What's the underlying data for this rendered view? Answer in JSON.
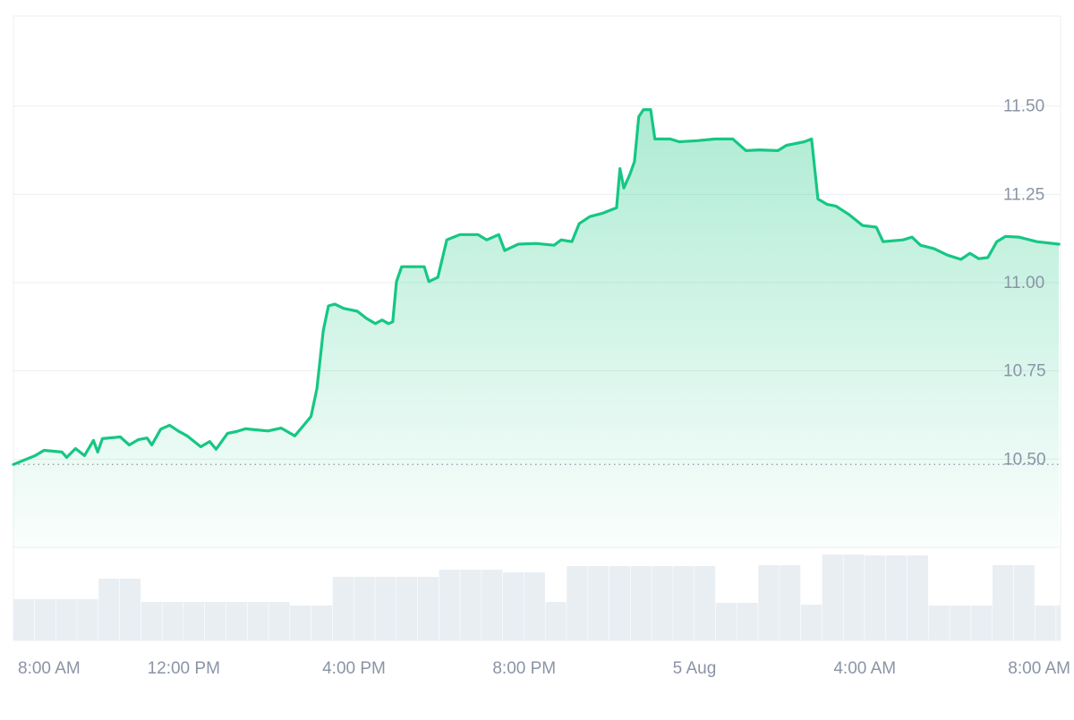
{
  "chart_data": {
    "type": "line",
    "color": "#16c784",
    "area": true,
    "grid": true,
    "x": [
      8.0,
      8.51,
      8.72,
      9.14,
      9.25,
      9.46,
      9.67,
      9.88,
      9.98,
      10.09,
      10.51,
      10.72,
      10.93,
      11.14,
      11.25,
      11.46,
      11.67,
      11.87,
      12.08,
      12.4,
      12.61,
      12.76,
      13.03,
      13.24,
      13.45,
      13.98,
      14.29,
      14.61,
      14.82,
      14.99,
      15.13,
      15.28,
      15.4,
      15.55,
      15.76,
      16.08,
      16.29,
      16.5,
      16.66,
      16.81,
      16.91,
      17.0,
      17.12,
      17.33,
      17.65,
      17.76,
      17.97,
      18.18,
      18.49,
      18.91,
      19.12,
      19.4,
      19.54,
      19.86,
      20.28,
      20.7,
      20.87,
      21.12,
      21.29,
      21.54,
      21.85,
      22.17,
      22.25,
      22.34,
      22.48,
      22.59,
      22.69,
      22.8,
      22.97,
      23.07,
      23.43,
      23.64,
      24.06,
      24.48,
      24.9,
      25.21,
      25.53,
      25.96,
      26.16,
      26.58,
      26.75,
      26.9,
      27.11,
      27.32,
      27.64,
      27.95,
      28.27,
      28.43,
      28.9,
      29.11,
      29.31,
      29.63,
      29.94,
      30.26,
      30.47,
      30.68,
      30.89,
      31.1,
      31.31,
      31.62,
      32.04,
      32.56
    ],
    "values": [
      10.485,
      10.51,
      10.525,
      10.52,
      10.505,
      10.53,
      10.51,
      10.553,
      10.52,
      10.558,
      10.563,
      10.54,
      10.555,
      10.56,
      10.54,
      10.585,
      10.596,
      10.58,
      10.566,
      10.535,
      10.55,
      10.528,
      10.573,
      10.578,
      10.586,
      10.58,
      10.588,
      10.566,
      10.596,
      10.621,
      10.7,
      10.864,
      10.934,
      10.939,
      10.927,
      10.919,
      10.899,
      10.884,
      10.894,
      10.884,
      10.889,
      11.003,
      11.045,
      11.045,
      11.045,
      11.003,
      11.015,
      11.121,
      11.136,
      11.136,
      11.121,
      11.136,
      11.091,
      11.109,
      11.111,
      11.106,
      11.121,
      11.116,
      11.167,
      11.187,
      11.197,
      11.212,
      11.323,
      11.268,
      11.306,
      11.343,
      11.47,
      11.49,
      11.49,
      11.407,
      11.407,
      11.399,
      11.402,
      11.407,
      11.407,
      11.374,
      11.376,
      11.374,
      11.389,
      11.399,
      11.407,
      11.237,
      11.222,
      11.217,
      11.192,
      11.162,
      11.157,
      11.116,
      11.121,
      11.129,
      11.106,
      11.096,
      11.078,
      11.066,
      11.083,
      11.068,
      11.071,
      11.116,
      11.131,
      11.129,
      11.116,
      11.109
    ],
    "xlim": [
      8,
      32.6
    ],
    "xticks": [
      {
        "value": 8,
        "label": "8:00 AM"
      },
      {
        "value": 12,
        "label": "12:00 PM"
      },
      {
        "value": 16,
        "label": "4:00 PM"
      },
      {
        "value": 20,
        "label": "8:00 PM"
      },
      {
        "value": 24,
        "label": "5 Aug"
      },
      {
        "value": 28,
        "label": "4:00 AM"
      },
      {
        "value": 32,
        "label": "8:00 AM"
      }
    ],
    "ylim": [
      10.25,
      11.75
    ],
    "yticks": [
      {
        "value": 10.5,
        "label": "10.50"
      },
      10.75,
      {
        "value": 11,
        "label": "11.00"
      },
      11.25,
      {
        "value": 11.5,
        "label": "11.50"
      }
    ],
    "volume": {
      "color": "#e9eef3",
      "x": [
        8,
        8.5,
        9,
        9.5,
        10,
        10.5,
        11,
        11.5,
        12,
        12.5,
        13,
        13.5,
        14,
        14.5,
        15,
        15.5,
        16,
        16.5,
        17,
        17.5,
        18,
        18.5,
        19,
        19.5,
        20,
        20.5,
        21,
        21.5,
        22,
        22.5,
        23,
        23.5,
        24,
        24.5,
        25,
        25.5,
        26,
        26.5,
        27,
        27.5,
        28,
        28.5,
        29,
        29.5,
        30,
        30.5,
        31,
        31.5,
        32,
        32.5
      ],
      "values": [
        46,
        46,
        46,
        46,
        69,
        69,
        43,
        43,
        43,
        43,
        43,
        43,
        43,
        39,
        39,
        71,
        71,
        71,
        71,
        71,
        79,
        79,
        79,
        76,
        76,
        43,
        83,
        83,
        83,
        83,
        83,
        83,
        83,
        42,
        42,
        84,
        84,
        40,
        96,
        96,
        95,
        95,
        95,
        39,
        39,
        39,
        84,
        84,
        39,
        39
      ]
    }
  }
}
